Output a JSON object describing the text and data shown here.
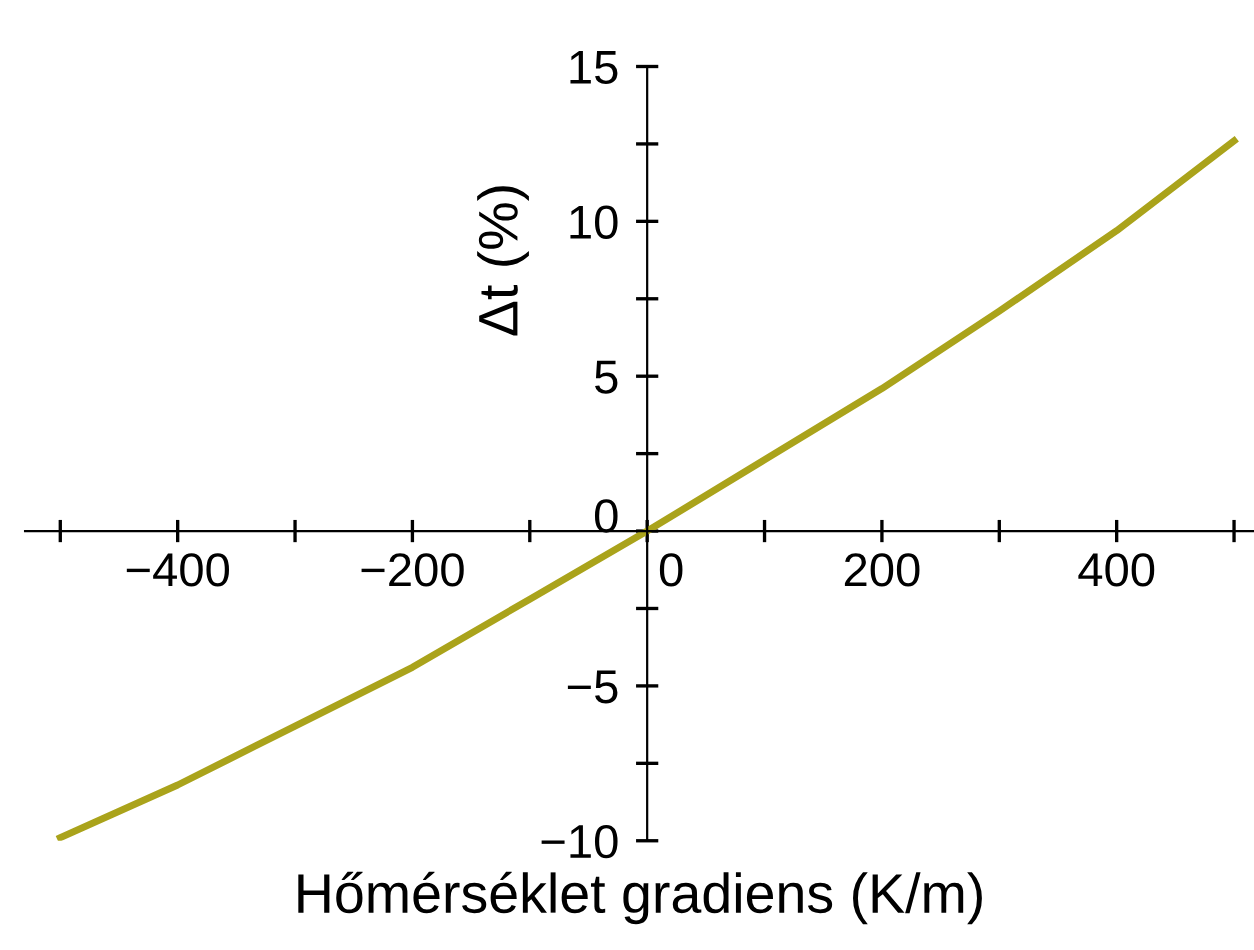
{
  "chart_data": {
    "type": "line",
    "xlabel": "Hőmérséklet gradiens (K/m)",
    "ylabel": "Δt (%)",
    "x": [
      -500,
      -400,
      -300,
      -200,
      -100,
      0,
      100,
      200,
      300,
      400,
      500
    ],
    "series": [
      {
        "color": "#aaa31b",
        "values": [
          -9.9,
          -8.2,
          -6.3,
          -4.4,
          -2.2,
          0,
          2.3,
          4.6,
          7.1,
          9.7,
          12.6
        ]
      }
    ],
    "xlim": [
      -530,
      517
    ],
    "ylim": [
      -10,
      15
    ],
    "xticks": [
      {
        "value": -500,
        "label": null
      },
      -400,
      {
        "value": -300,
        "label": null
      },
      -200,
      {
        "value": -100,
        "label": null
      },
      0,
      {
        "value": 100,
        "label": null
      },
      200,
      {
        "value": 300,
        "label": null
      },
      400,
      {
        "value": 500,
        "label": null
      }
    ],
    "yticks": [
      -10,
      {
        "value": -7.5,
        "label": null
      },
      -5,
      {
        "value": -2.5,
        "label": null
      },
      0,
      {
        "value": 2.5,
        "label": null
      },
      5,
      {
        "value": 7.5,
        "label": null
      },
      10,
      {
        "value": 12.5,
        "label": null
      },
      15
    ],
    "grid": false,
    "marker": "none",
    "line_style": "solid"
  }
}
